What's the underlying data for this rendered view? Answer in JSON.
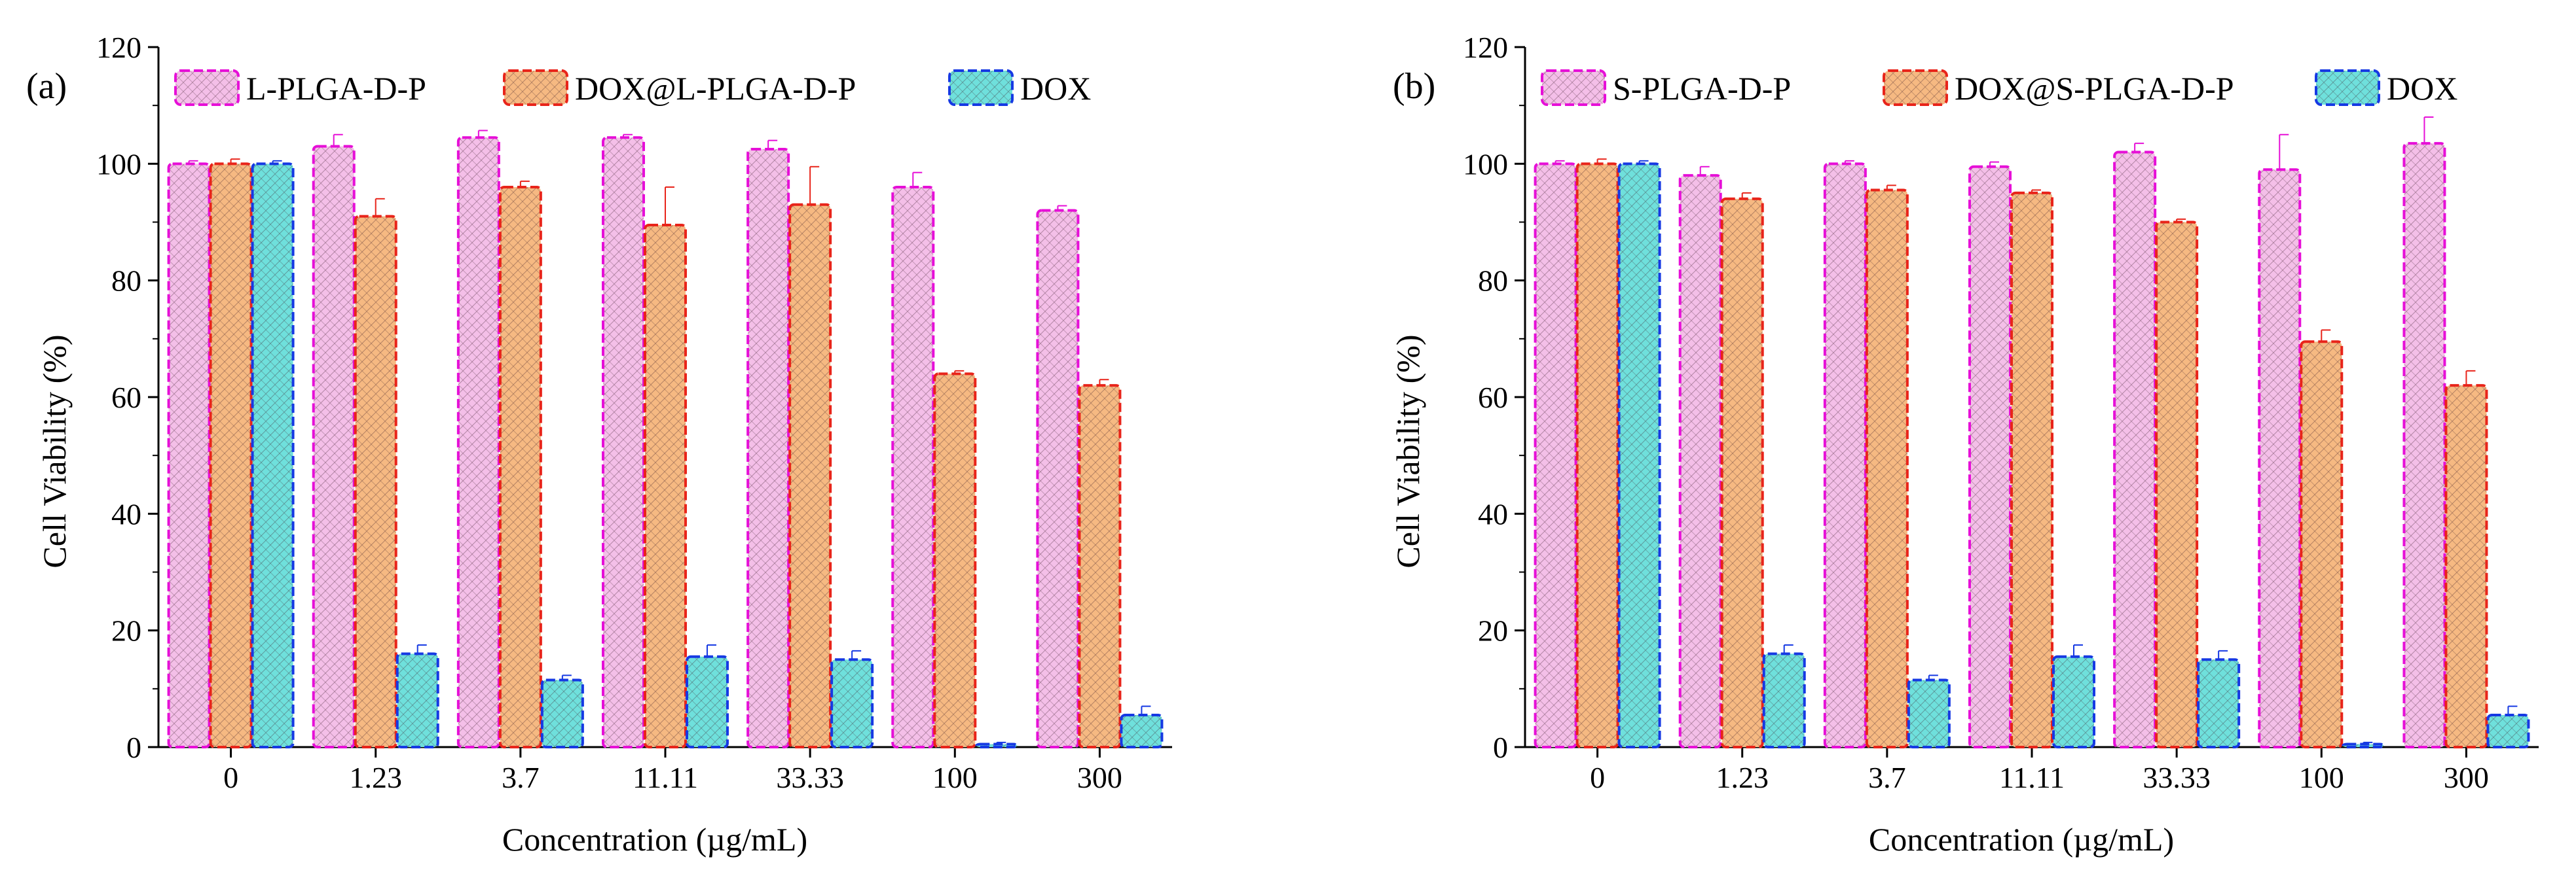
{
  "colors": {
    "series_fill": [
      "#f4bfe8",
      "#f6b982",
      "#6fe0dc"
    ],
    "series_stroke": [
      "#e60fd7",
      "#e8241a",
      "#1639e3"
    ],
    "axis": "#000000",
    "error_bar": [
      "#e60fd7",
      "#e8241a",
      "#1639e3"
    ]
  },
  "chart_data": [
    {
      "type": "bar",
      "panel_label": "(a)",
      "title": "",
      "xlabel": "Concentration (µg/mL)",
      "ylabel": "Cell Viability (%)",
      "ylim": [
        0,
        120
      ],
      "yticks": [
        0,
        20,
        40,
        60,
        80,
        100,
        120
      ],
      "categories": [
        "0",
        "1.23",
        "3.7",
        "11.11",
        "33.33",
        "100",
        "300"
      ],
      "legend_position": "top",
      "series": [
        {
          "name": "L-PLGA-D-P",
          "values": [
            100,
            103,
            104.5,
            104.5,
            102.5,
            96,
            92
          ],
          "errors": [
            0.5,
            2,
            1.2,
            0.5,
            1.5,
            2.5,
            0.8
          ]
        },
        {
          "name": "DOX@L-PLGA-D-P",
          "values": [
            100,
            91,
            96,
            89.5,
            93,
            64,
            62
          ],
          "errors": [
            0.8,
            3,
            1,
            6.5,
            6.5,
            0.5,
            1
          ]
        },
        {
          "name": "DOX",
          "values": [
            100,
            16,
            11.5,
            15.5,
            15,
            0.5,
            5.5
          ],
          "errors": [
            0.5,
            1.5,
            0.8,
            2,
            1.5,
            0.3,
            1.5
          ]
        }
      ]
    },
    {
      "type": "bar",
      "panel_label": "(b)",
      "title": "",
      "xlabel": "Concentration (µg/mL)",
      "ylabel": "Cell Viability (%)",
      "ylim": [
        0,
        120
      ],
      "yticks": [
        0,
        20,
        40,
        60,
        80,
        100,
        120
      ],
      "categories": [
        "0",
        "1.23",
        "3.7",
        "11.11",
        "33.33",
        "100",
        "300"
      ],
      "legend_position": "top",
      "series": [
        {
          "name": "S-PLGA-D-P",
          "values": [
            100,
            98,
            100,
            99.5,
            102,
            99,
            103.5
          ],
          "errors": [
            0.5,
            1.5,
            0.5,
            0.8,
            1.5,
            6,
            4.5
          ]
        },
        {
          "name": "DOX@S-PLGA-D-P",
          "values": [
            100,
            94,
            95.5,
            95,
            90,
            69.5,
            62
          ],
          "errors": [
            0.8,
            1,
            0.8,
            0.5,
            0.5,
            2,
            2.5
          ]
        },
        {
          "name": "DOX",
          "values": [
            100,
            16,
            11.5,
            15.5,
            15,
            0.5,
            5.5
          ],
          "errors": [
            0.5,
            1.5,
            0.8,
            2,
            1.5,
            0.3,
            1.5
          ]
        }
      ]
    }
  ]
}
